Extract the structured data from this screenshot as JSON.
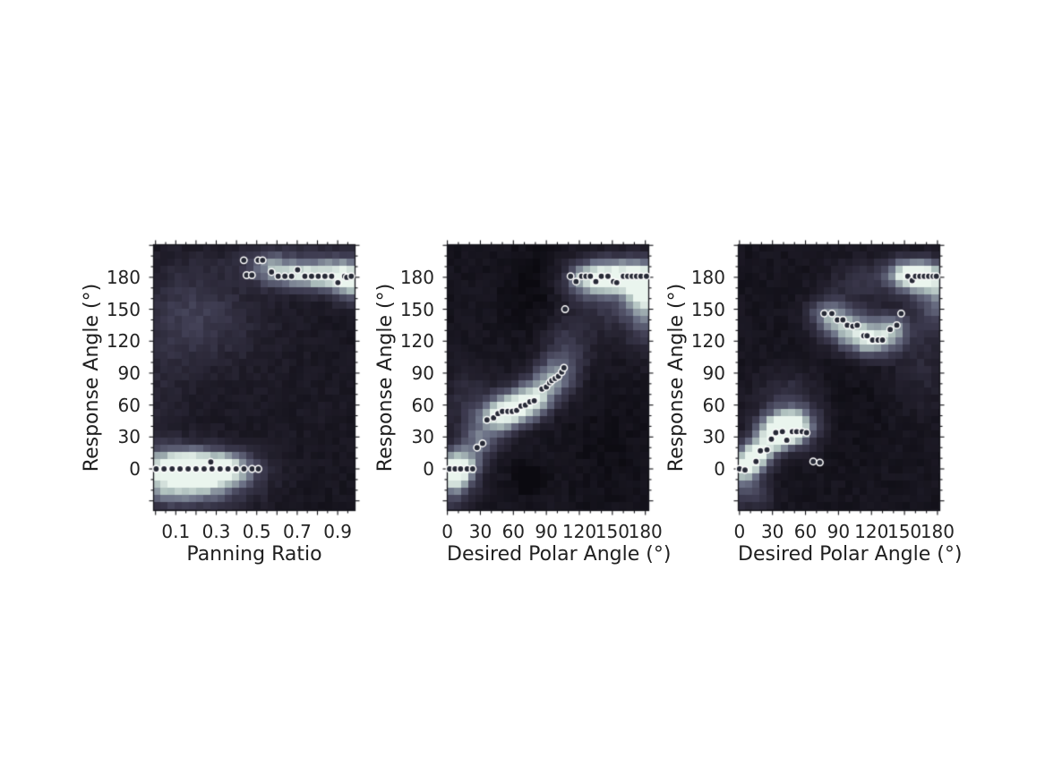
{
  "figure": {
    "background": "#ffffff"
  },
  "style": {
    "colormap": [
      [
        0.0,
        "#0b0a10"
      ],
      [
        0.2,
        "#221f2c"
      ],
      [
        0.4,
        "#3f3d52"
      ],
      [
        0.6,
        "#6b7085"
      ],
      [
        0.8,
        "#aebfbd"
      ],
      [
        1.0,
        "#eaf5ee"
      ]
    ],
    "border_color": "#16161d",
    "tick_color": "#101014",
    "tick_label_color": "#232323",
    "marker_fill": "#272a36",
    "marker_stroke": "#ffffff"
  },
  "chart_data": [
    {
      "type": "heatmap",
      "id": "panning-ratio-panel",
      "xlabel": "Panning Ratio",
      "ylabel": "Response Angle (°)",
      "x_range": [
        -0.012,
        0.988
      ],
      "y_range": [
        -39.5,
        211
      ],
      "xticks": {
        "values": [
          0.1,
          0.3,
          0.5,
          0.7,
          0.9
        ],
        "labels": [
          "0.1",
          "0.3",
          "0.5",
          "0.7",
          "0.9"
        ],
        "major_step": 0.1,
        "minor_step": 0.05
      },
      "yticks": {
        "values": [
          180,
          150,
          120,
          90,
          60,
          30,
          0
        ],
        "labels": [
          "180",
          "150",
          "120",
          "90",
          "60",
          "30",
          "0"
        ],
        "major_step": 30,
        "minor_step": 10
      },
      "density_blobs": [
        [
          0.13,
          0,
          0.16,
          13,
          1.1
        ],
        [
          0.35,
          0,
          0.12,
          11,
          0.6
        ],
        [
          0.14,
          -23,
          0.22,
          11,
          0.42
        ],
        [
          0.9,
          181,
          0.14,
          10,
          0.62
        ],
        [
          0.68,
          182,
          0.11,
          9,
          0.48
        ],
        [
          0.56,
          193,
          0.07,
          10,
          0.28
        ],
        [
          1.0,
          172,
          0.09,
          14,
          0.45
        ],
        [
          0.8,
          196,
          0.3,
          14,
          0.2
        ],
        [
          0.13,
          150,
          0.17,
          38,
          0.18
        ],
        [
          0.33,
          142,
          0.2,
          30,
          0.12
        ],
        [
          0.5,
          80,
          0.5,
          70,
          0.05
        ],
        [
          0.02,
          60,
          0.1,
          50,
          0.1
        ]
      ],
      "overlay_points": [
        [
          0.003,
          0
        ],
        [
          0.042,
          0
        ],
        [
          0.082,
          0
        ],
        [
          0.121,
          0
        ],
        [
          0.161,
          0
        ],
        [
          0.2,
          0
        ],
        [
          0.24,
          0
        ],
        [
          0.279,
          0
        ],
        [
          0.319,
          0
        ],
        [
          0.358,
          0
        ],
        [
          0.273,
          6.5
        ],
        [
          0.398,
          0
        ],
        [
          0.437,
          0
        ],
        [
          0.477,
          0
        ],
        [
          0.508,
          0
        ],
        [
          0.436,
          196
        ],
        [
          0.507,
          196
        ],
        [
          0.529,
          196
        ],
        [
          0.45,
          182
        ],
        [
          0.476,
          182
        ],
        [
          0.573,
          185
        ],
        [
          0.606,
          181
        ],
        [
          0.639,
          181
        ],
        [
          0.672,
          181
        ],
        [
          0.702,
          187
        ],
        [
          0.738,
          181
        ],
        [
          0.771,
          181
        ],
        [
          0.804,
          181
        ],
        [
          0.837,
          181
        ],
        [
          0.87,
          181
        ],
        [
          0.901,
          175
        ],
        [
          0.934,
          181
        ],
        [
          0.945,
          180
        ],
        [
          0.967,
          181
        ]
      ]
    },
    {
      "type": "heatmap",
      "id": "desired-polar-angle-panel-1",
      "xlabel": "Desired Polar Angle (°)",
      "ylabel": "Response Angle (°)",
      "x_range": [
        -0.5,
        183.5
      ],
      "y_range": [
        -39.5,
        211
      ],
      "xticks": {
        "values": [
          0,
          30,
          60,
          90,
          120,
          150,
          180
        ],
        "labels": [
          "0",
          "30",
          "60",
          "90",
          "120",
          "150",
          "180"
        ],
        "major_step": 30,
        "minor_step": 10
      },
      "yticks": {
        "values": [
          180,
          150,
          120,
          90,
          60,
          30,
          0
        ],
        "labels": [
          "180",
          "150",
          "120",
          "90",
          "60",
          "30",
          "0"
        ],
        "major_step": 30,
        "minor_step": 10
      },
      "density_blobs": [
        [
          8,
          0,
          13,
          12,
          1.1
        ],
        [
          0,
          -22,
          15,
          12,
          0.35
        ],
        [
          30,
          25,
          13,
          12,
          0.4
        ],
        [
          45,
          48,
          13,
          11,
          0.5
        ],
        [
          62,
          57,
          15,
          12,
          0.75
        ],
        [
          80,
          68,
          13,
          12,
          0.55
        ],
        [
          95,
          85,
          13,
          13,
          0.45
        ],
        [
          108,
          108,
          15,
          22,
          0.3
        ],
        [
          160,
          181,
          24,
          12,
          0.85
        ],
        [
          128,
          179,
          15,
          11,
          0.5
        ],
        [
          181,
          166,
          13,
          16,
          0.6
        ],
        [
          180,
          138,
          12,
          22,
          0.3
        ],
        [
          148,
          152,
          26,
          20,
          0.22
        ],
        [
          20,
          62,
          18,
          26,
          0.2
        ],
        [
          75,
          168,
          16,
          26,
          -0.1
        ],
        [
          70,
          -4,
          7,
          7,
          -0.13
        ],
        [
          82,
          -6,
          7,
          7,
          -0.1
        ],
        [
          76,
          -18,
          9,
          6,
          -0.1
        ],
        [
          150,
          15,
          30,
          33,
          -0.05
        ]
      ],
      "overlay_points": [
        [
          2,
          0
        ],
        [
          7,
          0
        ],
        [
          12,
          0
        ],
        [
          18,
          0
        ],
        [
          23,
          0
        ],
        [
          27,
          20
        ],
        [
          32,
          24
        ],
        [
          36,
          46
        ],
        [
          42,
          48
        ],
        [
          46,
          52
        ],
        [
          50,
          54
        ],
        [
          55,
          54
        ],
        [
          59,
          54
        ],
        [
          63,
          55
        ],
        [
          67,
          59
        ],
        [
          71,
          60
        ],
        [
          75,
          63
        ],
        [
          79,
          64
        ],
        [
          86,
          75
        ],
        [
          90,
          77
        ],
        [
          93,
          81
        ],
        [
          95,
          83
        ],
        [
          98,
          85
        ],
        [
          101,
          87
        ],
        [
          104,
          91
        ],
        [
          106,
          95
        ],
        [
          107,
          150
        ],
        [
          112,
          181
        ],
        [
          117,
          176
        ],
        [
          122,
          181
        ],
        [
          126,
          181
        ],
        [
          130,
          181
        ],
        [
          135,
          176
        ],
        [
          140,
          181
        ],
        [
          146,
          181
        ],
        [
          151,
          176
        ],
        [
          154,
          175
        ],
        [
          160,
          181
        ],
        [
          164,
          181
        ],
        [
          168,
          181
        ],
        [
          172,
          181
        ],
        [
          176,
          181
        ],
        [
          181,
          181
        ]
      ]
    },
    {
      "type": "heatmap",
      "id": "desired-polar-angle-panel-2",
      "xlabel": "Desired Polar Angle (°)",
      "ylabel": "Response Angle (°)",
      "x_range": [
        -1.5,
        182.5
      ],
      "y_range": [
        -39.5,
        211
      ],
      "xticks": {
        "values": [
          0,
          30,
          60,
          90,
          120,
          150,
          180
        ],
        "labels": [
          "0",
          "30",
          "60",
          "90",
          "120",
          "150",
          "180"
        ],
        "major_step": 30,
        "minor_step": 10
      },
      "yticks": {
        "values": [
          180,
          150,
          120,
          90,
          60,
          30,
          0
        ],
        "labels": [
          "180",
          "150",
          "120",
          "90",
          "60",
          "30",
          "0"
        ],
        "major_step": 30,
        "minor_step": 10
      },
      "density_blobs": [
        [
          37,
          36,
          13,
          11,
          1.05
        ],
        [
          20,
          18,
          11,
          11,
          0.6
        ],
        [
          12,
          8,
          10,
          10,
          0.5
        ],
        [
          3,
          0,
          9,
          11,
          0.65
        ],
        [
          55,
          40,
          13,
          13,
          0.5
        ],
        [
          45,
          62,
          22,
          22,
          0.25
        ],
        [
          100,
          131,
          16,
          13,
          0.6
        ],
        [
          122,
          120,
          15,
          11,
          0.65
        ],
        [
          140,
          133,
          11,
          11,
          0.45
        ],
        [
          80,
          146,
          13,
          11,
          0.48
        ],
        [
          168,
          181,
          18,
          11,
          0.8
        ],
        [
          150,
          183,
          12,
          10,
          0.45
        ],
        [
          179,
          158,
          13,
          18,
          0.42
        ],
        [
          112,
          177,
          22,
          15,
          0.22
        ],
        [
          165,
          100,
          18,
          32,
          0.16
        ],
        [
          10,
          -24,
          14,
          10,
          0.32
        ],
        [
          95,
          60,
          25,
          30,
          -0.05
        ]
      ],
      "overlay_points": [
        [
          0,
          0
        ],
        [
          5,
          -1
        ],
        [
          15,
          7
        ],
        [
          19,
          17
        ],
        [
          25,
          18
        ],
        [
          29,
          28
        ],
        [
          33,
          34
        ],
        [
          39,
          35
        ],
        [
          43,
          27
        ],
        [
          48,
          35
        ],
        [
          52,
          35
        ],
        [
          57,
          35
        ],
        [
          61,
          34
        ],
        [
          67,
          7
        ],
        [
          73,
          6
        ],
        [
          77,
          146
        ],
        [
          84,
          146
        ],
        [
          89,
          140
        ],
        [
          94,
          140
        ],
        [
          98,
          135
        ],
        [
          103,
          134
        ],
        [
          107,
          135
        ],
        [
          113,
          125
        ],
        [
          116,
          125
        ],
        [
          121,
          121
        ],
        [
          126,
          121
        ],
        [
          130,
          121
        ],
        [
          137,
          131
        ],
        [
          143,
          135
        ],
        [
          147,
          146
        ],
        [
          153,
          181
        ],
        [
          157,
          177
        ],
        [
          160,
          181
        ],
        [
          164,
          181
        ],
        [
          168,
          181
        ],
        [
          172,
          181
        ],
        [
          176,
          181
        ],
        [
          179,
          181
        ]
      ]
    }
  ]
}
